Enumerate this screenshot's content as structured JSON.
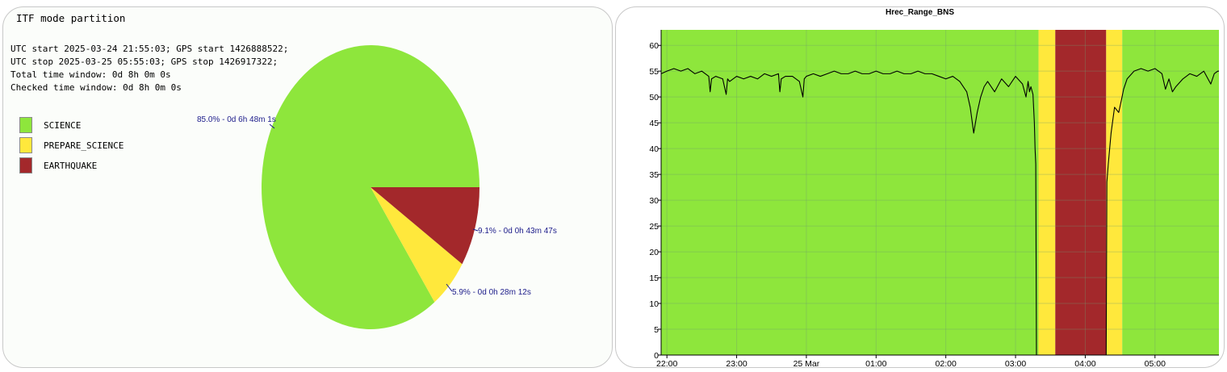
{
  "pie_panel": {
    "title": "ITF mode partition",
    "info": [
      "UTC start 2025-03-24 21:55:03; GPS start 1426888522;",
      "UTC stop 2025-03-25 05:55:03; GPS stop 1426917322;",
      "Total time window: 0d 8h 0m 0s",
      "Checked time window: 0d 8h 0m 0s"
    ],
    "legend": [
      {
        "label": "SCIENCE",
        "color": "#8ee63c"
      },
      {
        "label": "PREPARE_SCIENCE",
        "color": "#ffe83c"
      },
      {
        "label": "EARTHQUAKE",
        "color": "#a3282b"
      }
    ]
  },
  "line_panel": {
    "title": "Hrec_Range_BNS"
  },
  "chart_data": [
    {
      "type": "pie",
      "title": "ITF mode partition",
      "slices": [
        {
          "name": "SCIENCE",
          "percent": 85.0,
          "label": "85.0% - 0d 6h 48m 1s",
          "color": "#8ee63c"
        },
        {
          "name": "PREPARE_SCIENCE",
          "percent": 5.9,
          "label": "5.9% - 0d 0h 28m 12s",
          "color": "#ffe83c"
        },
        {
          "name": "EARTHQUAKE",
          "percent": 9.1,
          "label": "9.1% - 0d 0h 43m 47s",
          "color": "#a3282b"
        }
      ]
    },
    {
      "type": "line",
      "title": "Hrec_Range_BNS",
      "xlabel": "",
      "ylabel": "",
      "x_unit": "hours since 22:00 (axis starts 21:55, ends 05:55)",
      "xlim": [
        -0.083,
        7.917
      ],
      "ylim": [
        0,
        63
      ],
      "yticks": [
        0,
        5,
        10,
        15,
        20,
        25,
        30,
        35,
        40,
        45,
        50,
        55,
        60
      ],
      "xticks": [
        {
          "value": 0,
          "label": "22:00"
        },
        {
          "value": 1,
          "label": "23:00"
        },
        {
          "value": 2,
          "label": "25 Mar"
        },
        {
          "value": 3,
          "label": "01:00"
        },
        {
          "value": 4,
          "label": "02:00"
        },
        {
          "value": 5,
          "label": "03:00"
        },
        {
          "value": 6,
          "label": "04:00"
        },
        {
          "value": 7,
          "label": "05:00"
        }
      ],
      "grid": true,
      "background_bands": [
        {
          "state": "SCIENCE",
          "from": -0.083,
          "to": 5.33,
          "color": "#8ee63c"
        },
        {
          "state": "PREPARE_SCIENCE",
          "from": 5.33,
          "to": 5.57,
          "color": "#ffe83c"
        },
        {
          "state": "EARTHQUAKE",
          "from": 5.57,
          "to": 6.3,
          "color": "#a3282b"
        },
        {
          "state": "PREPARE_SCIENCE",
          "from": 6.3,
          "to": 6.53,
          "color": "#ffe83c"
        },
        {
          "state": "SCIENCE",
          "from": 6.53,
          "to": 7.917,
          "color": "#8ee63c"
        }
      ],
      "series": [
        {
          "color": "#000000",
          "x": [
            -0.083,
            0.0,
            0.1,
            0.2,
            0.3,
            0.4,
            0.5,
            0.6,
            0.62,
            0.64,
            0.7,
            0.8,
            0.85,
            0.87,
            0.9,
            1.0,
            1.1,
            1.2,
            1.3,
            1.4,
            1.5,
            1.6,
            1.62,
            1.64,
            1.7,
            1.8,
            1.9,
            1.95,
            1.97,
            2.0,
            2.1,
            2.2,
            2.3,
            2.4,
            2.5,
            2.6,
            2.7,
            2.8,
            2.9,
            3.0,
            3.1,
            3.2,
            3.3,
            3.4,
            3.5,
            3.6,
            3.7,
            3.8,
            3.9,
            4.0,
            4.1,
            4.2,
            4.3,
            4.35,
            4.4,
            4.45,
            4.5,
            4.55,
            4.6,
            4.7,
            4.8,
            4.9,
            5.0,
            5.1,
            5.15,
            5.18,
            5.2,
            5.22,
            5.25,
            5.27,
            5.28,
            5.29,
            5.3,
            6.3,
            6.31,
            6.33,
            6.37,
            6.42,
            6.48,
            6.52,
            6.55,
            6.6,
            6.7,
            6.8,
            6.9,
            7.0,
            7.1,
            7.15,
            7.2,
            7.25,
            7.3,
            7.4,
            7.5,
            7.6,
            7.7,
            7.8,
            7.85,
            7.9,
            7.917
          ],
          "values": [
            54.5,
            55.0,
            55.5,
            55.0,
            55.5,
            54.5,
            55.0,
            54.0,
            51.0,
            53.5,
            54.0,
            53.5,
            50.5,
            53.5,
            53.0,
            54.0,
            53.5,
            54.0,
            53.5,
            54.5,
            54.0,
            54.5,
            51.0,
            53.5,
            54.0,
            54.0,
            53.0,
            50.0,
            53.5,
            54.0,
            54.5,
            54.0,
            54.5,
            55.0,
            54.5,
            54.5,
            55.0,
            54.5,
            54.5,
            55.0,
            54.5,
            54.5,
            55.0,
            54.5,
            54.5,
            55.0,
            54.5,
            54.5,
            54.0,
            53.5,
            54.0,
            53.0,
            51.0,
            48.0,
            43.0,
            47.0,
            50.0,
            52.0,
            53.0,
            51.0,
            53.5,
            52.0,
            54.0,
            52.5,
            50.0,
            53.0,
            51.0,
            52.0,
            50.5,
            45.0,
            40.0,
            37.0,
            0.0,
            0.0,
            33.5,
            37.0,
            43.0,
            48.0,
            47.0,
            49.5,
            51.5,
            53.5,
            55.0,
            55.5,
            55.0,
            55.5,
            54.5,
            51.5,
            53.5,
            51.0,
            52.0,
            53.5,
            54.5,
            54.0,
            55.0,
            52.5,
            54.5,
            55.0,
            55.0
          ]
        }
      ]
    }
  ]
}
